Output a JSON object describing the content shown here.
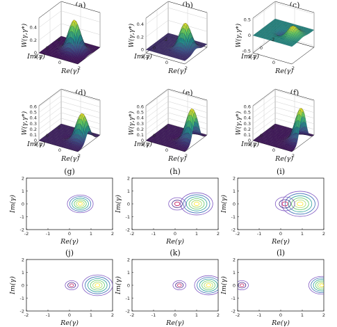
{
  "chart_data": [
    {
      "panel": "(a)",
      "type": "surface",
      "title": "(a)",
      "xlabel": "Re(γ)",
      "ylabel": "Im(γ)",
      "zlabel": "W(γ,γ*)",
      "x_ticks": [
        "-2",
        "0",
        "2"
      ],
      "y_ticks": [
        "-2",
        "0",
        "2"
      ],
      "z_ticks": [
        "0",
        "0.2",
        "0.4"
      ],
      "xlim": [
        -2,
        2
      ],
      "ylim": [
        -2,
        2
      ],
      "zlim": [
        0,
        0.55
      ],
      "features": {
        "peak_x": 0.5,
        "peak_y": 0,
        "peak_value": 0.5,
        "negative_dip": 0
      }
    },
    {
      "panel": "(b)",
      "type": "surface",
      "title": "(b)",
      "xlabel": "Re(γ)",
      "ylabel": "Im(γ)",
      "zlabel": "W(γ,γ*)",
      "x_ticks": [
        "-2",
        "0",
        "2"
      ],
      "y_ticks": [
        "-2",
        "0",
        "2"
      ],
      "z_ticks": [
        "0",
        "0.2",
        "0.4"
      ],
      "xlim": [
        -2,
        2
      ],
      "ylim": [
        -2,
        2
      ],
      "zlim": [
        -0.05,
        0.5
      ],
      "features": {
        "peak_x": 0.9,
        "peak_y": 0,
        "peak_value": 0.42,
        "negative_dip": -0.05
      }
    },
    {
      "panel": "(c)",
      "type": "surface",
      "title": "(c)",
      "xlabel": "Re(γ)",
      "ylabel": "Im(γ)",
      "zlabel": "W(γ,γ*)",
      "x_ticks": [
        "-2",
        "0",
        "2"
      ],
      "y_ticks": [
        "-2",
        "0",
        "2"
      ],
      "z_ticks": [
        "-0.5",
        "0",
        "0.5"
      ],
      "xlim": [
        -2,
        2
      ],
      "ylim": [
        -2,
        2
      ],
      "zlim": [
        -0.55,
        0.55
      ],
      "features": {
        "peak_x": 0.9,
        "peak_y": 0,
        "peak_value": 0.3,
        "negative_dip": -0.3
      }
    },
    {
      "panel": "(d)",
      "type": "surface",
      "title": "(d)",
      "xlabel": "Re(γ)",
      "ylabel": "Im(γ)",
      "zlabel": "W(γ,γ*)",
      "x_ticks": [
        "-2",
        "0",
        "2"
      ],
      "y_ticks": [
        "-2",
        "0",
        "2"
      ],
      "z_ticks": [
        "0",
        "0.1",
        "0.2",
        "0.3",
        "0.4",
        "0.5",
        "0.6"
      ],
      "xlim": [
        -2,
        2
      ],
      "ylim": [
        -2,
        2
      ],
      "zlim": [
        0,
        0.62
      ],
      "features": {
        "peak_x": 1.3,
        "peak_y": 0,
        "peak_value": 0.5,
        "negative_dip": -0.03
      }
    },
    {
      "panel": "(e)",
      "type": "surface",
      "title": "(e)",
      "xlabel": "Re(γ)",
      "ylabel": "Im(γ)",
      "zlabel": "W(γ,γ*)",
      "x_ticks": [
        "-2",
        "0",
        "2"
      ],
      "y_ticks": [
        "-2",
        "0",
        "2"
      ],
      "z_ticks": [
        "0",
        "0.1",
        "0.2",
        "0.3",
        "0.4",
        "0.5",
        "0.6"
      ],
      "xlim": [
        -2,
        2
      ],
      "ylim": [
        -2,
        2
      ],
      "zlim": [
        0,
        0.62
      ],
      "features": {
        "peak_x": 1.6,
        "peak_y": 0,
        "peak_value": 0.6,
        "negative_dip": -0.02
      }
    },
    {
      "panel": "(f)",
      "type": "surface",
      "title": "(f)",
      "xlabel": "Re(γ)",
      "ylabel": "Im(γ)",
      "zlabel": "W(γ,γ*)",
      "x_ticks": [
        "-2",
        "0",
        "2"
      ],
      "y_ticks": [
        "-2",
        "0",
        "2"
      ],
      "z_ticks": [
        "0",
        "0.1",
        "0.2",
        "0.3",
        "0.4",
        "0.5",
        "0.6"
      ],
      "xlim": [
        -2,
        2
      ],
      "ylim": [
        -2,
        2
      ],
      "zlim": [
        0,
        0.62
      ],
      "features": {
        "peak_x": 1.8,
        "peak_y": 0,
        "peak_value": 0.62,
        "negative_dip": -0.01
      }
    },
    {
      "panel": "(g)",
      "type": "contour",
      "title": "(g)",
      "xlabel": "Re(γ)",
      "ylabel": "Im(γ)",
      "x_ticks": [
        "-2",
        "-1",
        "0",
        "1",
        "2"
      ],
      "y_ticks": [
        "-2",
        "-1",
        "0",
        "1",
        "2"
      ],
      "xlim": [
        -2,
        2
      ],
      "ylim": [
        -2,
        2
      ],
      "features": {
        "peak_x": 0.5,
        "peak_y": 0,
        "peak_radius": 0.6,
        "dip_x": null,
        "dip_radius": 0
      }
    },
    {
      "panel": "(h)",
      "type": "contour",
      "title": "(h)",
      "xlabel": "Re(γ)",
      "ylabel": "Im(γ)",
      "x_ticks": [
        "-2",
        "-1",
        "0",
        "1",
        "2"
      ],
      "y_ticks": [
        "-2",
        "-1",
        "0",
        "1",
        "2"
      ],
      "xlim": [
        -2,
        2
      ],
      "ylim": [
        -2,
        2
      ],
      "features": {
        "peak_x": 1.0,
        "peak_y": 0,
        "peak_radius": 0.75,
        "dip_x": 0.1,
        "dip_radius": 0.4
      }
    },
    {
      "panel": "(i)",
      "type": "contour",
      "title": "(i)",
      "xlabel": "Re(γ)",
      "ylabel": "Im(γ)",
      "x_ticks": [
        "-2",
        "-1",
        "0",
        "1",
        "2"
      ],
      "y_ticks": [
        "-2",
        "-1",
        "0",
        "1",
        "2"
      ],
      "xlim": [
        -2,
        2
      ],
      "ylim": [
        -2,
        2
      ],
      "features": {
        "peak_x": 0.9,
        "peak_y": 0,
        "peak_radius": 0.85,
        "dip_x": 0.2,
        "dip_radius": 0.45
      }
    },
    {
      "panel": "(j)",
      "type": "contour",
      "title": "(j)",
      "xlabel": "Re(γ)",
      "ylabel": "Im(γ)",
      "x_ticks": [
        "-2",
        "-1",
        "0",
        "1",
        "2"
      ],
      "y_ticks": [
        "-2",
        "-1",
        "0",
        "1",
        "2"
      ],
      "xlim": [
        -2,
        2
      ],
      "ylim": [
        -2,
        2
      ],
      "features": {
        "peak_x": 1.3,
        "peak_y": 0,
        "peak_radius": 0.7,
        "dip_x": 0.1,
        "dip_radius": 0.3
      }
    },
    {
      "panel": "(k)",
      "type": "contour",
      "title": "(k)",
      "xlabel": "Re(γ)",
      "ylabel": "Im(γ)",
      "x_ticks": [
        "-2",
        "-1",
        "0",
        "1",
        "2"
      ],
      "y_ticks": [
        "-2",
        "-1",
        "0",
        "1",
        "2"
      ],
      "xlim": [
        -2,
        2
      ],
      "ylim": [
        -2,
        2
      ],
      "features": {
        "peak_x": 1.55,
        "peak_y": 0,
        "peak_radius": 0.65,
        "dip_x": 0.2,
        "dip_radius": 0.3
      }
    },
    {
      "panel": "(l)",
      "type": "contour",
      "title": "(l)",
      "xlabel": "Re(γ)",
      "ylabel": "Im(γ)",
      "x_ticks": [
        "-2",
        "-1",
        "0",
        "1",
        "2"
      ],
      "y_ticks": [
        "-2",
        "-1",
        "0",
        "1",
        "2"
      ],
      "xlim": [
        -2,
        2
      ],
      "ylim": [
        -2,
        2
      ],
      "features": {
        "peak_x": 1.9,
        "peak_y": 0,
        "peak_radius": 0.6,
        "dip_x": -1.8,
        "dip_radius": 0.3
      }
    }
  ],
  "colormap": [
    "#3e0a5a",
    "#3b528b",
    "#21918c",
    "#5ec962",
    "#fde725"
  ]
}
